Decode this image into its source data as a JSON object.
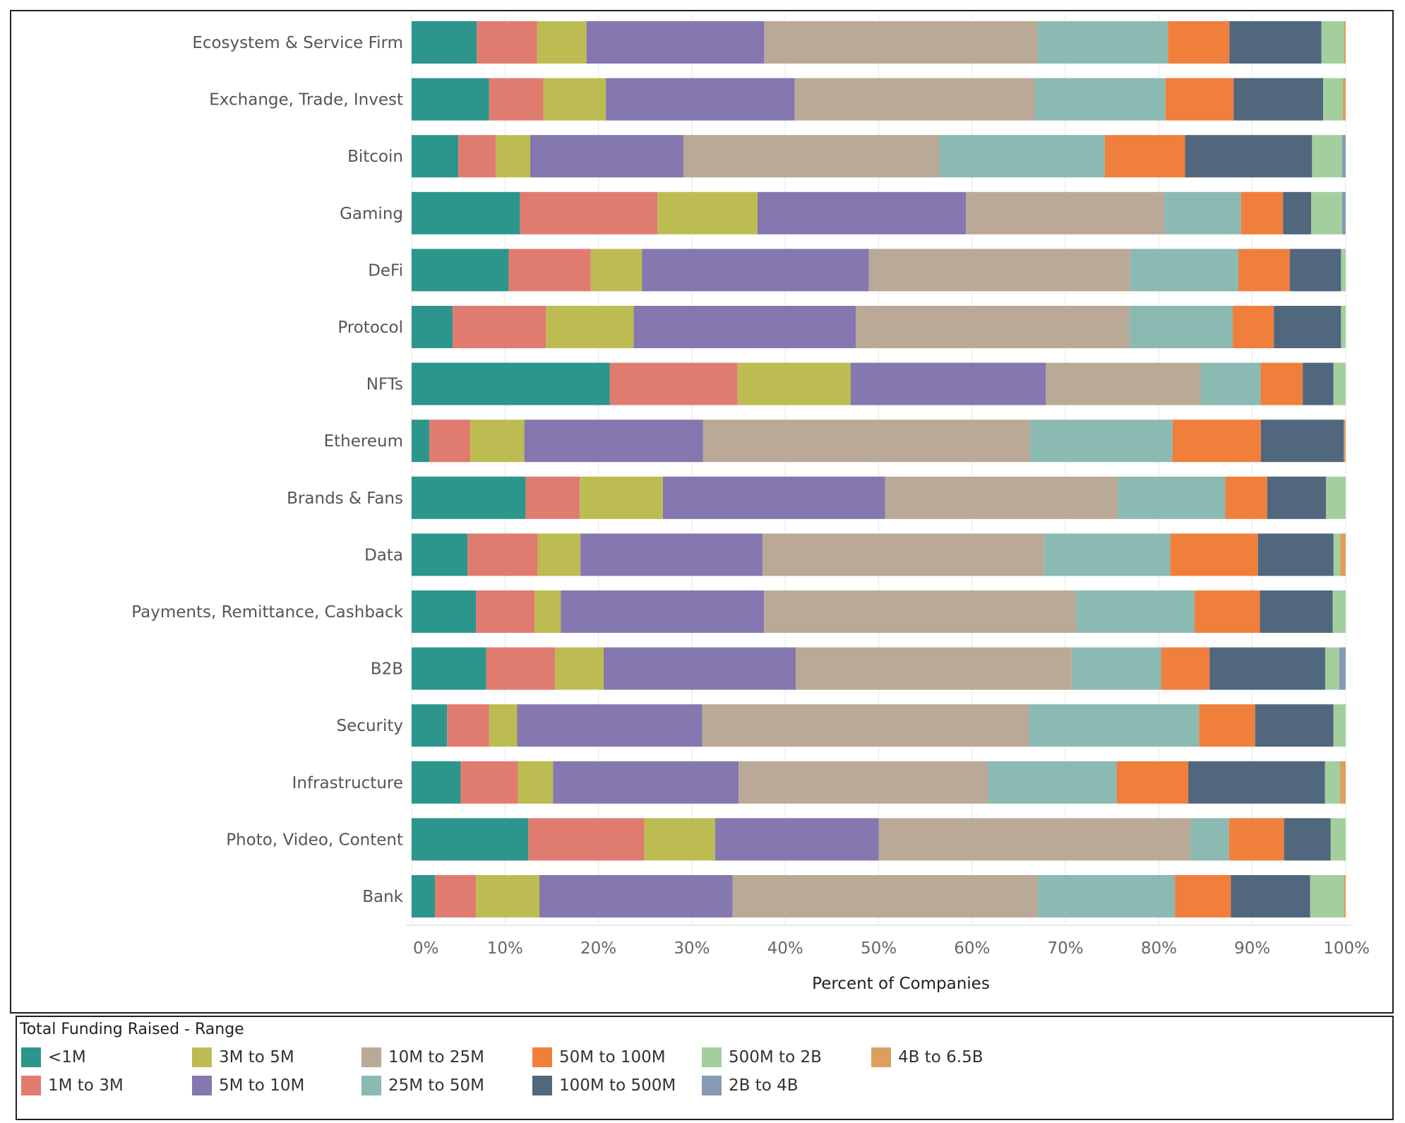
{
  "chart_data": {
    "type": "bar",
    "orientation": "horizontal",
    "stacked": true,
    "xlabel": "Percent of Companies",
    "xlim": [
      0,
      100
    ],
    "xticks": [
      "0%",
      "10%",
      "20%",
      "30%",
      "40%",
      "50%",
      "60%",
      "70%",
      "80%",
      "90%",
      "100%"
    ],
    "grid": true,
    "legend_placement": "bottom",
    "categories": [
      "Ecosystem & Service Firm",
      "Exchange, Trade, Invest",
      "Bitcoin",
      "Gaming",
      "DeFi",
      "Protocol",
      "NFTs",
      "Ethereum",
      "Brands & Fans",
      "Data",
      "Payments, Remittance, Cashback",
      "B2B",
      "Security",
      "Infrastructure",
      "Photo, Video, Content",
      "Bank"
    ],
    "series": [
      {
        "name": "<1M",
        "color": "#2C968C",
        "values": [
          7.0,
          8.3,
          5.0,
          11.6,
          10.4,
          4.4,
          21.2,
          1.9,
          12.2,
          6.0,
          6.9,
          8.0,
          3.8,
          5.2,
          12.5,
          2.5
        ]
      },
      {
        "name": "1M to 3M",
        "color": "#E07B70",
        "values": [
          6.5,
          5.8,
          4.0,
          14.7,
          8.8,
          10.0,
          13.7,
          4.4,
          5.8,
          7.5,
          6.3,
          7.4,
          4.5,
          6.1,
          12.4,
          4.4
        ]
      },
      {
        "name": "3M to 5M",
        "color": "#BDBC52",
        "values": [
          5.3,
          6.7,
          3.7,
          10.7,
          5.5,
          9.4,
          12.1,
          5.8,
          8.9,
          4.6,
          2.8,
          5.2,
          3.0,
          3.7,
          7.6,
          6.8
        ]
      },
      {
        "name": "5M to 10M",
        "color": "#8577AF",
        "values": [
          19.1,
          20.2,
          16.4,
          22.3,
          24.3,
          23.8,
          20.9,
          19.2,
          23.8,
          19.5,
          21.8,
          20.6,
          19.8,
          19.7,
          17.5,
          20.7
        ]
      },
      {
        "name": "10M to 25M",
        "color": "#BAA996",
        "values": [
          29.4,
          25.7,
          27.4,
          21.2,
          28.0,
          29.3,
          16.6,
          35.1,
          24.9,
          30.2,
          33.5,
          29.6,
          35.0,
          26.5,
          33.4,
          32.7
        ]
      },
      {
        "name": "25M to 50M",
        "color": "#8ABAB2",
        "values": [
          14.0,
          14.0,
          17.7,
          8.2,
          11.6,
          11.1,
          6.4,
          15.3,
          11.5,
          13.5,
          12.7,
          9.6,
          18.2,
          13.6,
          4.1,
          14.7
        ]
      },
      {
        "name": "50M to 100M",
        "color": "#F07F3C",
        "values": [
          6.6,
          7.3,
          8.6,
          4.5,
          5.5,
          4.4,
          4.5,
          9.5,
          4.5,
          9.4,
          7.0,
          5.2,
          6.0,
          7.6,
          5.9,
          6.0
        ]
      },
      {
        "name": "100M to 500M",
        "color": "#50677E",
        "values": [
          9.9,
          9.6,
          13.6,
          3.0,
          5.5,
          7.2,
          3.3,
          8.9,
          6.3,
          8.1,
          7.8,
          12.4,
          8.4,
          14.5,
          5.0,
          8.5
        ]
      },
      {
        "name": "500M to 2B",
        "color": "#A3CF9F",
        "values": [
          2.4,
          2.1,
          3.2,
          3.3,
          0.5,
          0.5,
          1.3,
          0.0,
          2.1,
          0.7,
          1.4,
          1.5,
          1.3,
          1.6,
          1.6,
          3.6
        ]
      },
      {
        "name": "2B to 4B",
        "color": "#869BB3",
        "values": [
          0.0,
          0.0,
          0.4,
          0.4,
          0.0,
          0.0,
          0.0,
          0.0,
          0.0,
          0.0,
          0.0,
          0.7,
          0.0,
          0.0,
          0.0,
          0.0
        ]
      },
      {
        "name": "4B to 6.5B",
        "color": "#DD9E5E",
        "values": [
          0.2,
          0.3,
          0.0,
          0.0,
          0.0,
          0.0,
          0.0,
          0.2,
          0.0,
          0.6,
          0.0,
          0.0,
          0.0,
          0.6,
          0.0,
          0.2
        ]
      }
    ]
  },
  "legend": {
    "title": "Total Funding Raised - Range"
  }
}
